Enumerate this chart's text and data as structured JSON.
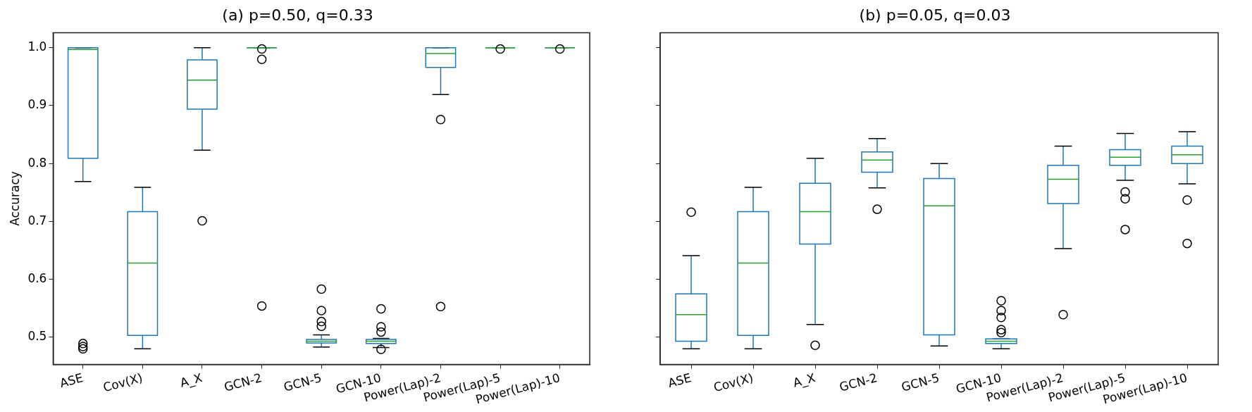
{
  "chart_data": [
    {
      "type": "box",
      "title": "(a) p=0.50, q=0.33",
      "ylabel": "Accuracy",
      "categories": [
        "ASE",
        "Cov(X)",
        "A_X",
        "GCN-2",
        "GCN-5",
        "GCN-10",
        "Power(Lap)-2",
        "Power(Lap)-5",
        "Power(Lap)-10"
      ],
      "ylim": [
        0.453,
        1.026
      ],
      "yticks": [
        {
          "value": 0.5,
          "label": "0.5"
        },
        {
          "value": 0.6,
          "label": "0.6"
        },
        {
          "value": 0.7,
          "label": "0.7"
        },
        {
          "value": 0.8,
          "label": "0.8"
        },
        {
          "value": 0.9,
          "label": "0.9"
        },
        {
          "value": 1.0,
          "label": "1.0"
        }
      ],
      "series": [
        {
          "color": "#1f77b4",
          "boxes": [
            {
              "low": 0.769,
              "q1": 0.809,
              "median": 0.997,
              "q3": 1.0,
              "high": 1.0,
              "outliers": [
                0.489,
                0.484,
                0.48
              ]
            },
            {
              "low": 0.48,
              "q1": 0.503,
              "median": 0.628,
              "q3": 0.717,
              "high": 0.759
            },
            {
              "low": 0.823,
              "q1": 0.894,
              "median": 0.944,
              "q3": 0.979,
              "high": 1.0,
              "outliers": [
                0.701
              ]
            },
            {
              "low": 1.0,
              "q1": 1.0,
              "median": 1.0,
              "q3": 1.0,
              "high": 1.0,
              "outliers": [
                0.998,
                0.98,
                0.554
              ]
            },
            {
              "low": 0.483,
              "q1": 0.49,
              "median": 0.493,
              "q3": 0.496,
              "high": 0.504,
              "outliers": [
                0.583,
                0.546,
                0.527,
                0.519
              ]
            },
            {
              "low": 0.482,
              "q1": 0.489,
              "median": 0.493,
              "q3": 0.496,
              "high": 0.498,
              "outliers": [
                0.549,
                0.518,
                0.509,
                0.479
              ]
            },
            {
              "low": 0.919,
              "q1": 0.966,
              "median": 0.99,
              "q3": 1.0,
              "high": 1.0,
              "outliers": [
                0.876,
                0.553
              ]
            },
            {
              "low": 1.0,
              "q1": 1.0,
              "median": 1.0,
              "q3": 1.0,
              "high": 1.0,
              "outliers": [
                0.998
              ]
            },
            {
              "low": 1.0,
              "q1": 1.0,
              "median": 1.0,
              "q3": 1.0,
              "high": 1.0,
              "outliers": [
                0.998
              ]
            }
          ]
        }
      ]
    },
    {
      "type": "box",
      "title": "(b) p=0.05, q=0.03",
      "categories": [
        "ASE",
        "Cov(X)",
        "A_X",
        "GCN-2",
        "GCN-5",
        "GCN-10",
        "Power(Lap)-2",
        "Power(Lap)-5",
        "Power(Lap)-10"
      ],
      "ylim": [
        0.453,
        1.026
      ],
      "yticks": [
        0.5,
        0.6,
        0.7,
        0.8,
        0.9,
        1.0
      ],
      "tick_labels": "x",
      "series": [
        {
          "color": "#1f77b4",
          "boxes": [
            {
              "low": 0.48,
              "q1": 0.493,
              "median": 0.539,
              "q3": 0.575,
              "high": 0.641,
              "outliers": [
                0.716
              ]
            },
            {
              "low": 0.48,
              "q1": 0.503,
              "median": 0.628,
              "q3": 0.717,
              "high": 0.759
            },
            {
              "low": 0.522,
              "q1": 0.661,
              "median": 0.717,
              "q3": 0.766,
              "high": 0.809,
              "outliers": [
                0.486
              ]
            },
            {
              "low": 0.758,
              "q1": 0.785,
              "median": 0.806,
              "q3": 0.82,
              "high": 0.843,
              "outliers": [
                0.721
              ]
            },
            {
              "low": 0.485,
              "q1": 0.504,
              "median": 0.727,
              "q3": 0.774,
              "high": 0.8
            },
            {
              "low": 0.48,
              "q1": 0.489,
              "median": 0.493,
              "q3": 0.497,
              "high": 0.497,
              "outliers": [
                0.563,
                0.546,
                0.534,
                0.513,
                0.508
              ]
            },
            {
              "low": 0.653,
              "q1": 0.731,
              "median": 0.773,
              "q3": 0.797,
              "high": 0.83,
              "outliers": [
                0.539
              ]
            },
            {
              "low": 0.771,
              "q1": 0.797,
              "median": 0.811,
              "q3": 0.824,
              "high": 0.852,
              "outliers": [
                0.751,
                0.739,
                0.686
              ]
            },
            {
              "low": 0.765,
              "q1": 0.8,
              "median": 0.815,
              "q3": 0.83,
              "high": 0.855,
              "outliers": [
                0.737,
                0.662
              ]
            }
          ]
        }
      ]
    }
  ]
}
